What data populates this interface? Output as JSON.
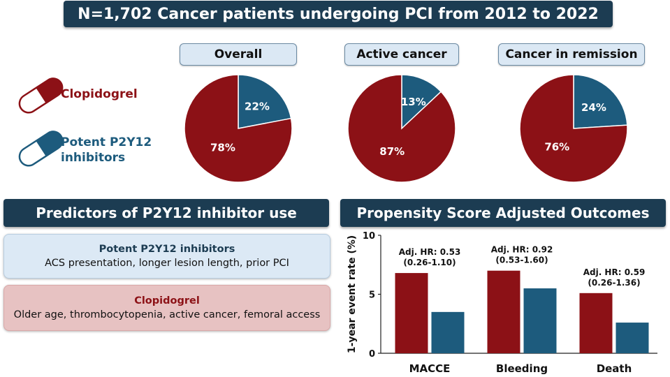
{
  "header": {
    "title": "N=1,702 Cancer patients undergoing PCI from 2012 to 2022"
  },
  "legend": {
    "clopidogrel_label": "Clopidogrel",
    "potent_label_line1": "Potent P2Y12",
    "potent_label_line2": "inhibitors"
  },
  "colors": {
    "clopidogrel": "#8c1116",
    "potent": "#1d5b7d",
    "dark_header": "#1c3c52"
  },
  "pies": {
    "overall_label": "Overall",
    "active_label": "Active cancer",
    "remission_label": "Cancer in remission"
  },
  "predictors": {
    "header": "Predictors of P2Y12 inhibitor use",
    "potent_title": "Potent P2Y12 inhibitors",
    "potent_text": "ACS presentation, longer lesion length, prior PCI",
    "clopidogrel_title": "Clopidogrel",
    "clopidogrel_text": "Older age, thrombocytopenia, active cancer, femoral access"
  },
  "outcomes": {
    "header": "Propensity Score Adjusted Outcomes"
  },
  "chart_data": [
    {
      "type": "pie",
      "title": "Overall",
      "labels": [
        "Clopidogrel",
        "Potent P2Y12 inhibitors"
      ],
      "values": [
        78,
        22
      ],
      "display": [
        "78%",
        "22%"
      ]
    },
    {
      "type": "pie",
      "title": "Active cancer",
      "labels": [
        "Clopidogrel",
        "Potent P2Y12 inhibitors"
      ],
      "values": [
        87,
        13
      ],
      "display": [
        "87%",
        "13%"
      ]
    },
    {
      "type": "pie",
      "title": "Cancer in remission",
      "labels": [
        "Clopidogrel",
        "Potent P2Y12 inhibitors"
      ],
      "values": [
        76,
        24
      ],
      "display": [
        "76%",
        "24%"
      ]
    },
    {
      "type": "bar",
      "title": "Propensity Score Adjusted Outcomes",
      "categories": [
        "MACCE",
        "Bleeding",
        "Death"
      ],
      "series": [
        {
          "name": "Clopidogrel",
          "values": [
            6.8,
            7.0,
            5.1
          ]
        },
        {
          "name": "Potent P2Y12 inhibitors",
          "values": [
            3.5,
            5.5,
            2.6
          ]
        }
      ],
      "ylabel": "1-year event rate (%)",
      "ylim": [
        0,
        10
      ],
      "yticks": [
        "0",
        "5",
        "10"
      ],
      "annotations": [
        {
          "line1": "Adj. HR: 0.53",
          "line2": "(0.26-1.10)"
        },
        {
          "line1": "Adj. HR: 0.92",
          "line2": "(0.53-1.60)"
        },
        {
          "line1": "Adj. HR: 0.59",
          "line2": "(0.26-1.36)"
        }
      ]
    }
  ]
}
